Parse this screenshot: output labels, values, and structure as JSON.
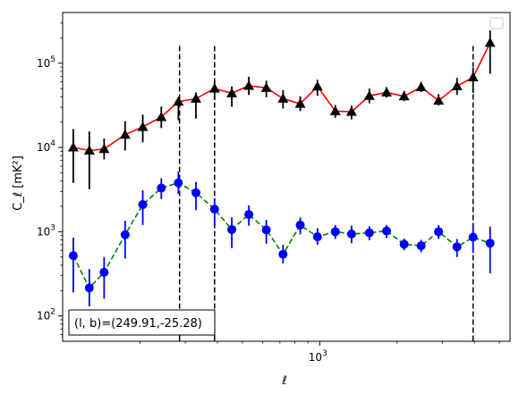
{
  "chart_data": {
    "type": "scatter",
    "xlabel": "ℓ",
    "ylabel": "C_ℓ [mK²]",
    "x_scale": "log",
    "y_scale": "log",
    "xlim": [
      100,
      5500
    ],
    "ylim": [
      50,
      400000
    ],
    "x_tick_labels": [
      {
        "value": 1000,
        "base": "10",
        "exp": "3"
      }
    ],
    "y_tick_labels": [
      {
        "value": 100,
        "base": "10",
        "exp": "2"
      },
      {
        "value": 1000,
        "base": "10",
        "exp": "3"
      },
      {
        "value": 10000,
        "base": "10",
        "exp": "4"
      },
      {
        "value": 100000,
        "base": "10",
        "exp": "5"
      }
    ],
    "grid": false,
    "legend": {
      "placement": "top-right",
      "entries": []
    },
    "vertical_lines": [
      285,
      390,
      3950
    ],
    "series": [
      {
        "marker": "triangle",
        "color": "#000000",
        "line_color": "#ff0000",
        "line_style": "solid",
        "points": [
          {
            "x": 110,
            "y": 10000,
            "lo": 3800,
            "hi": 16500
          },
          {
            "x": 127,
            "y": 9200,
            "lo": 3200,
            "hi": 15500
          },
          {
            "x": 145,
            "y": 9600,
            "lo": 7200,
            "hi": 12800
          },
          {
            "x": 175,
            "y": 14200,
            "lo": 9200,
            "hi": 20500
          },
          {
            "x": 205,
            "y": 17500,
            "lo": 11500,
            "hi": 24500
          },
          {
            "x": 242,
            "y": 23000,
            "lo": 17000,
            "hi": 30500
          },
          {
            "x": 282,
            "y": 35000,
            "lo": 21000,
            "hi": 39000
          },
          {
            "x": 330,
            "y": 38000,
            "lo": 22000,
            "hi": 45000
          },
          {
            "x": 390,
            "y": 50000,
            "lo": 36500,
            "hi": 62000
          },
          {
            "x": 455,
            "y": 44000,
            "lo": 30500,
            "hi": 53000
          },
          {
            "x": 530,
            "y": 54000,
            "lo": 42000,
            "hi": 69000
          },
          {
            "x": 620,
            "y": 51000,
            "lo": 39500,
            "hi": 62000
          },
          {
            "x": 720,
            "y": 38000,
            "lo": 29000,
            "hi": 48000
          },
          {
            "x": 840,
            "y": 33000,
            "lo": 27000,
            "hi": 40500
          },
          {
            "x": 980,
            "y": 53000,
            "lo": 41000,
            "hi": 63500
          },
          {
            "x": 1150,
            "y": 27000,
            "lo": 22500,
            "hi": 32000
          },
          {
            "x": 1330,
            "y": 26500,
            "lo": 21500,
            "hi": 31500
          },
          {
            "x": 1560,
            "y": 41000,
            "lo": 33500,
            "hi": 50000
          },
          {
            "x": 1820,
            "y": 45000,
            "lo": 39000,
            "hi": 52000
          },
          {
            "x": 2130,
            "y": 40500,
            "lo": 35500,
            "hi": 47000
          },
          {
            "x": 2480,
            "y": 52000,
            "lo": 45500,
            "hi": 60000
          },
          {
            "x": 2900,
            "y": 36000,
            "lo": 31500,
            "hi": 43000
          },
          {
            "x": 3420,
            "y": 53500,
            "lo": 42000,
            "hi": 67000
          },
          {
            "x": 3950,
            "y": 68000,
            "lo": 44500,
            "hi": 88000
          },
          {
            "x": 4600,
            "y": 175000,
            "lo": 75000,
            "hi": 245000
          }
        ]
      },
      {
        "marker": "circle",
        "color": "#0000ff",
        "line_color": "#008000",
        "line_style": "dashed",
        "points": [
          {
            "x": 110,
            "y": 520,
            "lo": 190,
            "hi": 850
          },
          {
            "x": 127,
            "y": 215,
            "lo": 130,
            "hi": 360
          },
          {
            "x": 145,
            "y": 330,
            "lo": 160,
            "hi": 500
          },
          {
            "x": 175,
            "y": 920,
            "lo": 480,
            "hi": 1350
          },
          {
            "x": 205,
            "y": 2100,
            "lo": 1200,
            "hi": 3100
          },
          {
            "x": 242,
            "y": 3300,
            "lo": 2450,
            "hi": 4300
          },
          {
            "x": 282,
            "y": 3800,
            "lo": 2800,
            "hi": 5200
          },
          {
            "x": 330,
            "y": 2900,
            "lo": 1800,
            "hi": 3900
          },
          {
            "x": 390,
            "y": 1850,
            "lo": 1150,
            "hi": 2500
          },
          {
            "x": 455,
            "y": 1060,
            "lo": 640,
            "hi": 1480
          },
          {
            "x": 530,
            "y": 1600,
            "lo": 1180,
            "hi": 2050
          },
          {
            "x": 620,
            "y": 1050,
            "lo": 720,
            "hi": 1380
          },
          {
            "x": 720,
            "y": 540,
            "lo": 420,
            "hi": 700
          },
          {
            "x": 840,
            "y": 1200,
            "lo": 930,
            "hi": 1480
          },
          {
            "x": 980,
            "y": 870,
            "lo": 700,
            "hi": 1100
          },
          {
            "x": 1150,
            "y": 1000,
            "lo": 820,
            "hi": 1200
          },
          {
            "x": 1330,
            "y": 940,
            "lo": 730,
            "hi": 1180
          },
          {
            "x": 1560,
            "y": 970,
            "lo": 790,
            "hi": 1160
          },
          {
            "x": 1820,
            "y": 1020,
            "lo": 840,
            "hi": 1200
          },
          {
            "x": 2130,
            "y": 710,
            "lo": 600,
            "hi": 830
          },
          {
            "x": 2480,
            "y": 680,
            "lo": 570,
            "hi": 800
          },
          {
            "x": 2900,
            "y": 1000,
            "lo": 820,
            "hi": 1200
          },
          {
            "x": 3420,
            "y": 660,
            "lo": 500,
            "hi": 820
          },
          {
            "x": 3950,
            "y": 860,
            "lo": 560,
            "hi": 1150
          },
          {
            "x": 4600,
            "y": 730,
            "lo": 320,
            "hi": 1150
          }
        ]
      }
    ],
    "annotation": "(l, b)=(249.91,-25.28)"
  }
}
